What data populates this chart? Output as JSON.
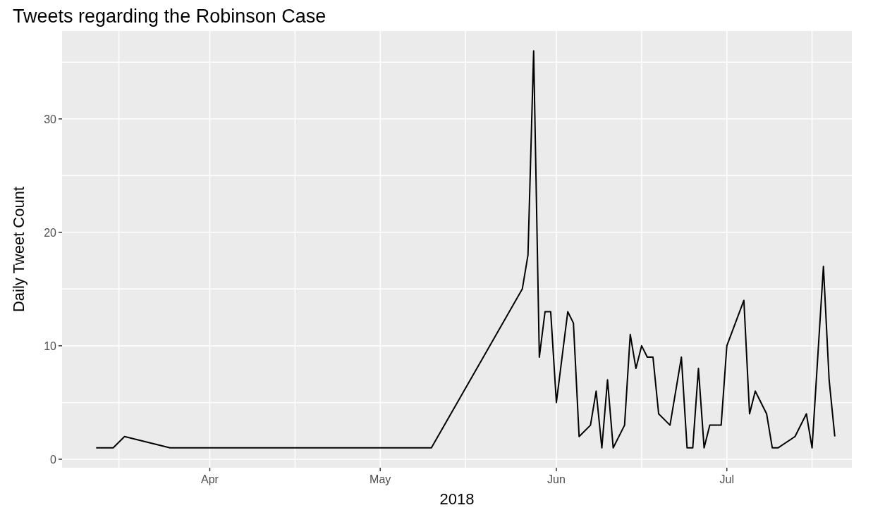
{
  "chart_data": {
    "type": "line",
    "title": "Tweets regarding the Robinson Case",
    "xlabel": "2018",
    "ylabel": "Daily Tweet Count",
    "x": [
      "2018-03-12",
      "2018-03-15",
      "2018-03-17",
      "2018-03-25",
      "2018-05-10",
      "2018-05-26",
      "2018-05-27",
      "2018-05-28",
      "2018-05-29",
      "2018-05-30",
      "2018-05-31",
      "2018-06-01",
      "2018-06-03",
      "2018-06-04",
      "2018-06-05",
      "2018-06-07",
      "2018-06-08",
      "2018-06-09",
      "2018-06-10",
      "2018-06-11",
      "2018-06-13",
      "2018-06-14",
      "2018-06-15",
      "2018-06-16",
      "2018-06-17",
      "2018-06-18",
      "2018-06-19",
      "2018-06-21",
      "2018-06-23",
      "2018-06-24",
      "2018-06-25",
      "2018-06-26",
      "2018-06-27",
      "2018-06-28",
      "2018-06-30",
      "2018-07-01",
      "2018-07-04",
      "2018-07-05",
      "2018-07-06",
      "2018-07-08",
      "2018-07-09",
      "2018-07-10",
      "2018-07-13",
      "2018-07-15",
      "2018-07-16",
      "2018-07-18",
      "2018-07-19",
      "2018-07-20"
    ],
    "series": [
      {
        "color": "#000000",
        "values": [
          1,
          1,
          2,
          1,
          1,
          15,
          18,
          36,
          9,
          13,
          13,
          5,
          13,
          12,
          2,
          3,
          6,
          1,
          7,
          1,
          3,
          11,
          8,
          10,
          9,
          9,
          4,
          3,
          9,
          1,
          1,
          8,
          1,
          3,
          3,
          10,
          14,
          4,
          6,
          4,
          1,
          1,
          2,
          4,
          1,
          17,
          7,
          2
        ]
      }
    ],
    "xlim": [
      "2018-03-06",
      "2018-07-23"
    ],
    "xticks": [
      {
        "value": "2018-03-16",
        "label": null
      },
      {
        "value": "2018-04-01",
        "label": "Apr"
      },
      {
        "value": "2018-04-16",
        "label": null
      },
      {
        "value": "2018-05-01",
        "label": "May"
      },
      {
        "value": "2018-05-16",
        "label": null
      },
      {
        "value": "2018-06-01",
        "label": "Jun"
      },
      {
        "value": "2018-06-16",
        "label": null
      },
      {
        "value": "2018-07-01",
        "label": "Jul"
      },
      {
        "value": "2018-07-16",
        "label": null
      }
    ],
    "ylim": [
      -0.75,
      37.75
    ],
    "yticks": [
      0,
      {
        "value": 5,
        "label": null
      },
      10,
      {
        "value": 15,
        "label": null
      },
      20,
      {
        "value": 25,
        "label": null
      },
      30,
      {
        "value": 35,
        "label": null
      }
    ],
    "grid": true,
    "legend": false,
    "marker": "none",
    "line_style": "solid"
  }
}
